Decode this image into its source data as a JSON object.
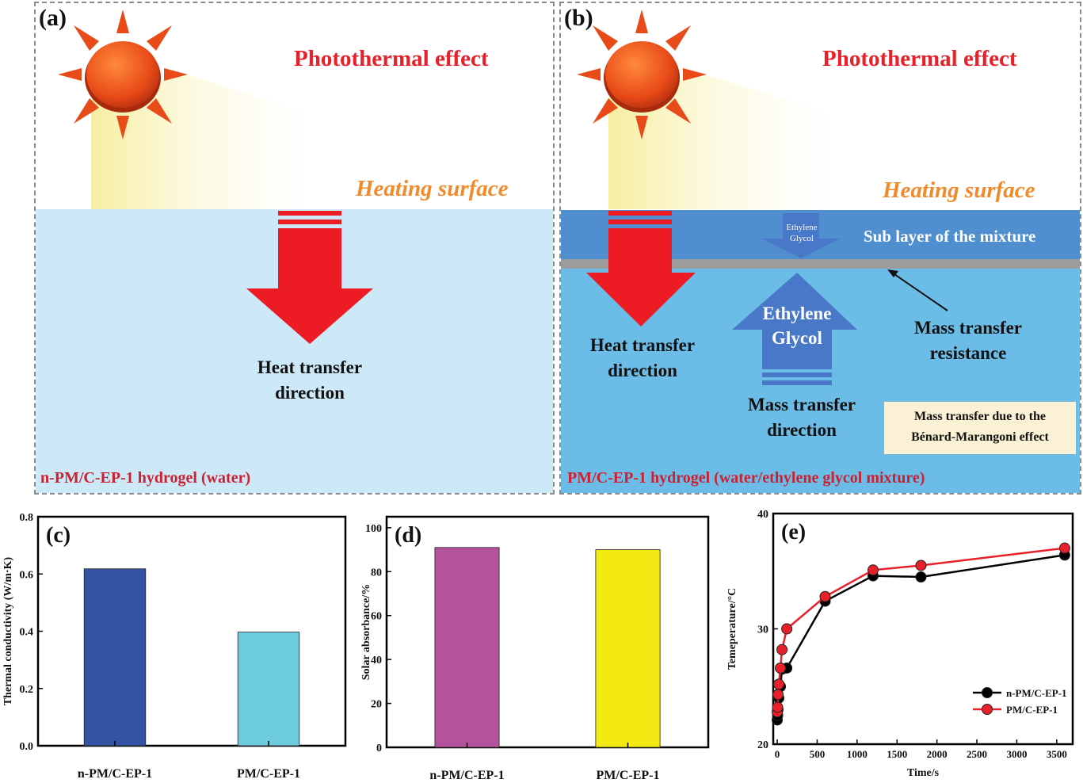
{
  "panel_a": {
    "tag": "(a)",
    "title": "Photothermal effect",
    "heating_surface": "Heating surface",
    "arrow_label_line1": "Heat transfer",
    "arrow_label_line2": "direction",
    "caption": "n-PM/C-EP-1 hydrogel (water)"
  },
  "panel_b": {
    "tag": "(b)",
    "title": "Photothermal effect",
    "heating_surface": "Heating surface",
    "small_arrow_line1": "Ethylene",
    "small_arrow_line2": "Glycol",
    "sub_layer": "Sub layer of the mixture",
    "big_arrow_line1": "Ethylene",
    "big_arrow_line2": "Glycol",
    "heat_line1": "Heat transfer",
    "heat_line2": "direction",
    "resistance_line1": "Mass transfer",
    "resistance_line2": "resistance",
    "mass_line1": "Mass transfer",
    "mass_line2": "direction",
    "box_line1": "Mass transfer due to the",
    "box_line2": "Bénard-Marangoni effect",
    "caption": "PM/C-EP-1 hydrogel (water/ethylene glycol mixture)"
  },
  "colors": {
    "sun": "#e84a18",
    "light_beam": "#f6eea0",
    "water": "#cde9f8",
    "mixture": "#6bbde8",
    "sub_layer": "#4f8fcf",
    "membrane": "#9c9c9c",
    "heat_arrow": "#ed1c24",
    "glycol_arrow": "#4a78c8",
    "note_box": "#fbf2d6",
    "bar_navy": "#3452a4",
    "bar_cyan": "#6ccbdc",
    "bar_magenta": "#b4529c",
    "bar_yellow": "#f2ea12",
    "line_black": "#000000",
    "line_red": "#e8202a"
  },
  "chart_data": [
    {
      "type": "bar",
      "tag": "(c)",
      "categories": [
        "n-PM/C-EP-1",
        "PM/C-EP-1"
      ],
      "values": [
        0.618,
        0.397
      ],
      "ylabel": "Thermal conductivity (W/m·K)",
      "ylim": [
        0,
        0.8
      ],
      "yticks": [
        0.0,
        0.2,
        0.4,
        0.6,
        0.8
      ],
      "ytick_labels": [
        "0.0",
        "0.2",
        "0.4",
        "0.6",
        "0.8"
      ]
    },
    {
      "type": "bar",
      "tag": "(d)",
      "categories": [
        "n-PM/C-EP-1",
        "PM/C-EP-1"
      ],
      "values": [
        91,
        90
      ],
      "ylabel": "Solar absorbance/%",
      "ylim": [
        0,
        105
      ],
      "yticks": [
        0,
        20,
        40,
        60,
        80,
        100
      ],
      "ytick_labels": [
        "0",
        "20",
        "40",
        "60",
        "80",
        "100"
      ]
    },
    {
      "type": "line",
      "tag": "(e)",
      "xlabel": "Time/s",
      "ylabel": "Temeperature/°C",
      "xlim": [
        -50,
        3700
      ],
      "ylim": [
        20,
        40
      ],
      "xticks": [
        0,
        500,
        1000,
        1500,
        2000,
        2500,
        3000,
        3500
      ],
      "xtick_labels": [
        "0",
        "500",
        "1000",
        "1500",
        "2000",
        "2500",
        "3000",
        "3500"
      ],
      "yticks": [
        20,
        30,
        40
      ],
      "ytick_labels": [
        "20",
        "30",
        "40"
      ],
      "legend_position": "right",
      "series": [
        {
          "name": "n-PM/C-EP-1",
          "x": [
            0,
            5,
            10,
            20,
            40,
            60,
            120,
            600,
            1200,
            1800,
            3600
          ],
          "y": [
            22.1,
            22.5,
            23.0,
            24.0,
            25.0,
            26.5,
            26.6,
            32.4,
            34.6,
            34.5,
            36.4
          ]
        },
        {
          "name": "PM/C-EP-1",
          "x": [
            0,
            5,
            10,
            20,
            40,
            60,
            120,
            600,
            1200,
            1800,
            3600
          ],
          "y": [
            22.8,
            23.2,
            24.3,
            25.2,
            26.6,
            28.2,
            30.0,
            32.8,
            35.1,
            35.5,
            37.0
          ]
        }
      ]
    }
  ]
}
